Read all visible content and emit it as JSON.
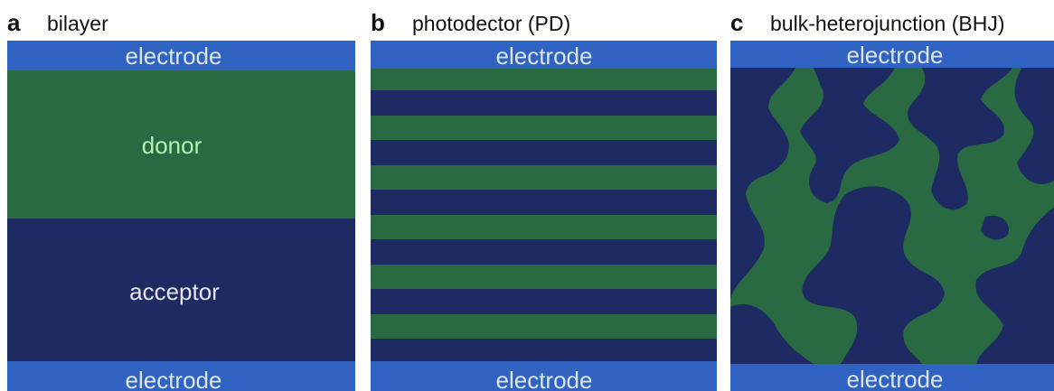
{
  "panels": [
    {
      "letter": "a",
      "title": "bilayer",
      "top_electrode": "electrode",
      "layers": [
        "donor",
        "acceptor"
      ],
      "bottom_electrode": "electrode"
    },
    {
      "letter": "b",
      "title": "photodector (PD)",
      "top_electrode": "electrode",
      "bottom_electrode": "electrode"
    },
    {
      "letter": "c",
      "title": "bulk-heterojunction (BHJ)",
      "top_electrode": "electrode",
      "bottom_electrode": "electrode"
    }
  ]
}
